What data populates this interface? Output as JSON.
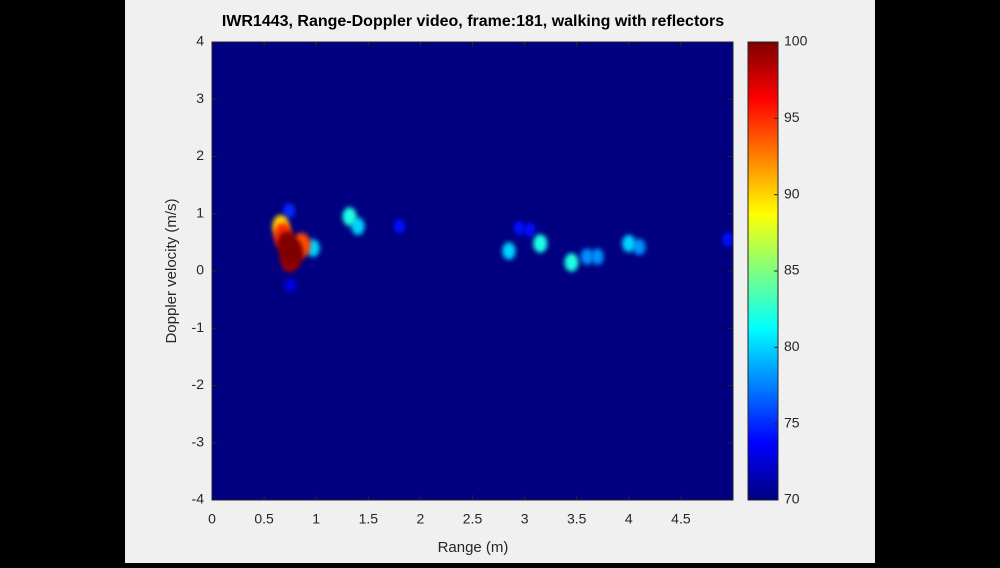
{
  "chart_data": {
    "type": "heatmap",
    "title": "IWR1443, Range-Doppler video, frame:181, walking with reflectors",
    "xlabel": "Range (m)",
    "ylabel": "Doppler velocity (m/s)",
    "x": [
      0.72,
      0.78,
      0.68,
      0.86,
      0.75,
      0.66,
      0.74,
      0.75,
      0.97,
      1.32,
      1.4,
      1.8,
      2.85,
      3.15,
      3.45,
      3.6,
      3.7,
      4.0,
      4.1,
      4.95,
      2.95,
      3.05
    ],
    "y": [
      0.45,
      0.32,
      0.62,
      0.45,
      0.22,
      0.78,
      1.05,
      -0.25,
      0.4,
      0.95,
      0.78,
      0.78,
      0.35,
      0.48,
      0.15,
      0.25,
      0.25,
      0.48,
      0.42,
      0.55,
      0.75,
      0.72
    ],
    "values": [
      100,
      100,
      95,
      94,
      99,
      90,
      75,
      73,
      80,
      82,
      80,
      74,
      80,
      82,
      82,
      78,
      78,
      80,
      78,
      74,
      74,
      74
    ],
    "xlim": [
      0,
      5
    ],
    "xticks": [
      0,
      0.5,
      1,
      1.5,
      2,
      2.5,
      3,
      3.5,
      4,
      4.5
    ],
    "ylim": [
      -4,
      4
    ],
    "yticks": [
      -4,
      -3,
      -2,
      -1,
      0,
      1,
      2,
      3,
      4
    ],
    "clim": [
      70,
      100
    ],
    "cticks": [
      70,
      75,
      80,
      85,
      90,
      95,
      100
    ],
    "colormap": "jet"
  }
}
